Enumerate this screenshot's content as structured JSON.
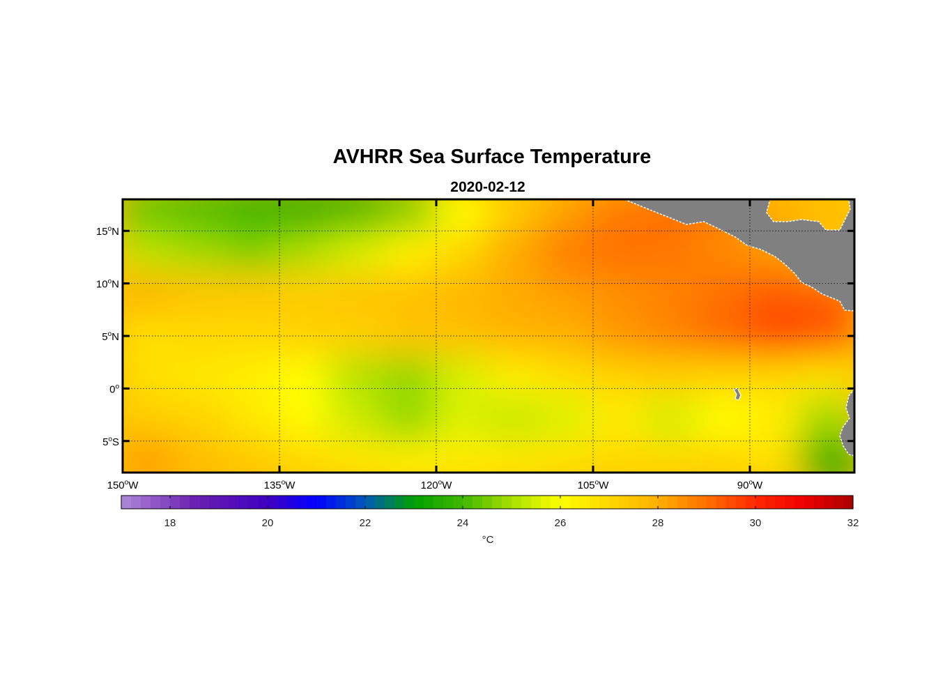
{
  "chart_data": {
    "type": "heatmap",
    "title": "AVHRR Sea Surface Temperature",
    "subtitle": "2020-02-12",
    "x_range": [
      -150,
      -80
    ],
    "y_range": [
      -8,
      18
    ],
    "x_ticks": [
      {
        "value": -150,
        "num": "150",
        "hemi": "W"
      },
      {
        "value": -135,
        "num": "135",
        "hemi": "W"
      },
      {
        "value": -120,
        "num": "120",
        "hemi": "W"
      },
      {
        "value": -105,
        "num": "105",
        "hemi": "W"
      },
      {
        "value": -90,
        "num": "90",
        "hemi": "W"
      }
    ],
    "y_ticks": [
      {
        "value": 15,
        "num": "15",
        "hemi": "N"
      },
      {
        "value": 10,
        "num": "10",
        "hemi": "N"
      },
      {
        "value": 5,
        "num": "5",
        "hemi": "N"
      },
      {
        "value": 0,
        "num": "0",
        "hemi": ""
      },
      {
        "value": -5,
        "num": "5",
        "hemi": "S"
      }
    ],
    "degree_symbol": "o",
    "grid": true,
    "land_color": "#808080",
    "colorbar": {
      "range": [
        17,
        32
      ],
      "ticks": [
        "18",
        "20",
        "22",
        "24",
        "26",
        "28",
        "30",
        "32"
      ],
      "tick_values": [
        18,
        20,
        22,
        24,
        26,
        28,
        30,
        32
      ],
      "label": "°C",
      "stops": [
        {
          "value": 17,
          "color": "#b088d8"
        },
        {
          "value": 18.5,
          "color": "#6a20b0"
        },
        {
          "value": 20,
          "color": "#4000c0"
        },
        {
          "value": 21,
          "color": "#0000ff"
        },
        {
          "value": 22,
          "color": "#005ab8"
        },
        {
          "value": 23,
          "color": "#00a000"
        },
        {
          "value": 24,
          "color": "#40b800"
        },
        {
          "value": 25,
          "color": "#a8e000"
        },
        {
          "value": 26,
          "color": "#ffff00"
        },
        {
          "value": 27,
          "color": "#ffd800"
        },
        {
          "value": 28,
          "color": "#ffb000"
        },
        {
          "value": 29,
          "color": "#ff7000"
        },
        {
          "value": 30,
          "color": "#ff2800"
        },
        {
          "value": 31,
          "color": "#ee0000"
        },
        {
          "value": 32,
          "color": "#aa0000"
        }
      ]
    },
    "sst_field": {
      "lon_centers": [
        -147.5,
        -142.5,
        -137.5,
        -132.5,
        -127.5,
        -122.5,
        -117.5,
        -112.5,
        -107.5,
        -102.5,
        -97.5,
        -92.5,
        -87.5,
        -82.5
      ],
      "lat_centers": [
        17,
        13,
        9,
        5,
        1,
        -3,
        -7
      ],
      "values": [
        [
          24.3,
          24.1,
          23.8,
          23.5,
          23.8,
          24.5,
          26.0,
          27.3,
          28.2,
          28.8,
          29.0,
          28.8,
          28.0,
          27.6
        ],
        [
          25.2,
          24.9,
          24.6,
          25.0,
          25.5,
          26.3,
          27.0,
          28.1,
          28.8,
          29.0,
          28.9,
          28.6,
          28.3,
          27.6
        ],
        [
          27.9,
          27.5,
          27.4,
          27.3,
          27.5,
          27.6,
          27.8,
          28.1,
          28.3,
          28.5,
          28.7,
          29.0,
          29.3,
          29.2
        ],
        [
          26.8,
          27.0,
          27.0,
          27.2,
          27.2,
          27.5,
          27.6,
          27.9,
          28.0,
          28.4,
          28.7,
          29.1,
          29.6,
          29.4
        ],
        [
          26.8,
          26.6,
          26.4,
          26.0,
          25.1,
          24.8,
          25.5,
          26.4,
          26.8,
          27.1,
          27.2,
          27.1,
          27.0,
          26.7
        ],
        [
          27.3,
          27.1,
          26.6,
          26.1,
          25.4,
          24.8,
          25.6,
          25.3,
          25.6,
          26.5,
          25.5,
          26.0,
          26.4,
          24.9
        ],
        [
          28.3,
          27.7,
          27.4,
          27.0,
          26.7,
          26.4,
          26.5,
          26.6,
          26.8,
          27.0,
          27.0,
          27.1,
          26.8,
          23.5
        ]
      ]
    }
  }
}
